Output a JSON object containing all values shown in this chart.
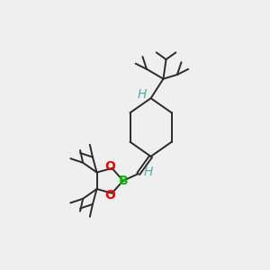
{
  "bg_color": "#efefef",
  "bond_color": "#2a2a2a",
  "atom_colors": {
    "B": "#00bb00",
    "O": "#ee0000",
    "H_top": "#5aabab",
    "H_bot": "#5aabab"
  },
  "figsize": [
    3.0,
    3.0
  ],
  "dpi": 100,
  "lw": 1.4
}
